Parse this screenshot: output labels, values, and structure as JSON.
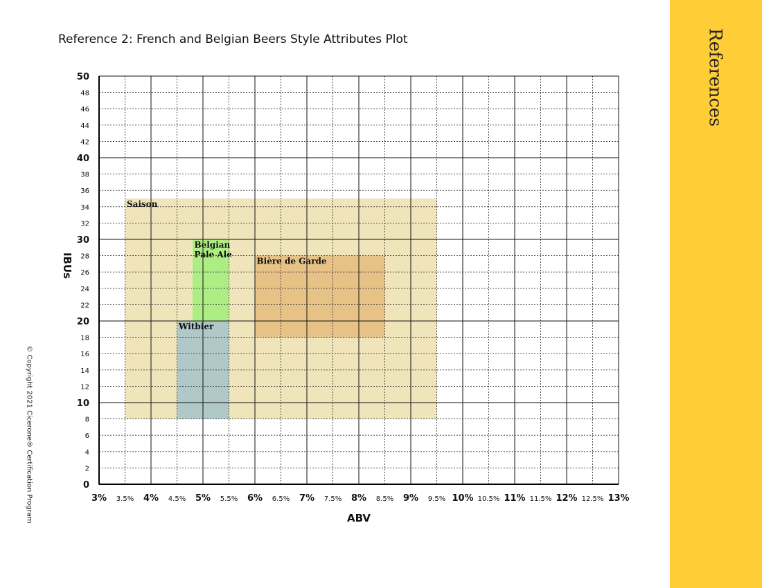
{
  "page": {
    "title": "Reference 2: French and Belgian Beers Style Attributes Plot",
    "sidebar_label": "References",
    "copyright": "© Copyright 2021 Cicerone® Certification Program",
    "sidebar_color": "#FFCD35"
  },
  "chart_data": {
    "type": "range-rectangle",
    "title": "Reference 2: French and Belgian Beers Style Attributes Plot",
    "xlabel": "ABV",
    "ylabel": "IBUs",
    "xlim": [
      3,
      13
    ],
    "ylim": [
      0,
      50
    ],
    "grid": true,
    "x_ticks": [
      "3%",
      "3.5%",
      "4%",
      "4.5%",
      "5%",
      "5.5%",
      "6%",
      "6.5%",
      "7%",
      "7.5%",
      "8%",
      "8.5%",
      "9%",
      "9.5%",
      "10%",
      "10.5%",
      "11%",
      "11.5%",
      "12%",
      "12.5%",
      "13%"
    ],
    "y_ticks": [
      "0",
      "2",
      "4",
      "6",
      "8",
      "10",
      "12",
      "14",
      "16",
      "18",
      "20",
      "22",
      "24",
      "26",
      "28",
      "30",
      "32",
      "34",
      "36",
      "38",
      "40",
      "42",
      "44",
      "46",
      "48",
      "50"
    ],
    "series": [
      {
        "name": "Saison",
        "label_lines": [
          "Saison"
        ],
        "abv": [
          3.5,
          9.5
        ],
        "ibu": [
          8,
          35
        ],
        "color": "#E6D48C",
        "opacity": 0.6
      },
      {
        "name": "Witbier",
        "label_lines": [
          "Witbier"
        ],
        "abv": [
          4.5,
          5.5
        ],
        "ibu": [
          8,
          20
        ],
        "color": "#A6C3CB",
        "opacity": 0.85
      },
      {
        "name": "Belgian Pale Ale",
        "label_lines": [
          "Belgian",
          "Pale Ale"
        ],
        "abv": [
          4.8,
          5.5
        ],
        "ibu": [
          20,
          30
        ],
        "color": "#A2EE7A",
        "opacity": 0.85
      },
      {
        "name": "Bière de Garde",
        "label_lines": [
          "Bière de Garde"
        ],
        "abv": [
          6,
          8.5
        ],
        "ibu": [
          18,
          28
        ],
        "color": "#E2B472",
        "opacity": 0.7
      }
    ]
  }
}
